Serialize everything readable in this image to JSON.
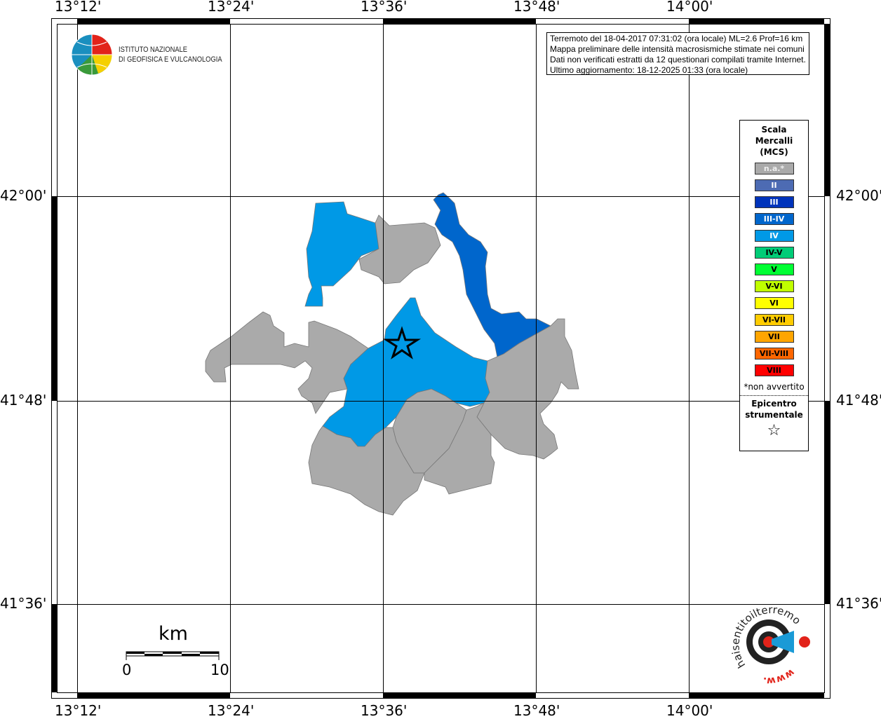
{
  "map": {
    "lon_ticks": [
      "13°12'",
      "13°24'",
      "13°36'",
      "13°48'",
      "14°00'"
    ],
    "lat_ticks": [
      "42°00'",
      "41°48'",
      "41°36'"
    ],
    "colors": {
      "na": "#aaaaaa",
      "IV": "#0099e6",
      "III-IV": "#0066cc"
    }
  },
  "logo": {
    "line1": "ISTITUTO NAZIONALE",
    "line2": "DI GEOFISICA E VULCANOLOGIA"
  },
  "info": {
    "line1": "Terremoto del 18-04-2017 07:31:02 (ora locale) ML=2.6 Prof=16 km",
    "line2": "Mappa preliminare delle intensità macrosismiche stimate nei comuni",
    "line3": "Dati non verificati estratti da 12 questionari compilati tramite Internet.",
    "line4": "Ultimo aggiornamento: 18-12-2025 01:33 (ora locale)"
  },
  "legend": {
    "title1": "Scala",
    "title2": "Mercalli",
    "title3": "(MCS)",
    "items": [
      {
        "label": "n.a.*",
        "color": "#aaaaaa",
        "text": "#eeeeee"
      },
      {
        "label": "II",
        "color": "#4d6bb3",
        "text": "#ffffff"
      },
      {
        "label": "III",
        "color": "#0033bb",
        "text": "#ffffff"
      },
      {
        "label": "III-IV",
        "color": "#0066cc",
        "text": "#ffffff"
      },
      {
        "label": "IV",
        "color": "#0099e6",
        "text": "#ffffff"
      },
      {
        "label": "IV-V",
        "color": "#00cc77",
        "text": "#000000"
      },
      {
        "label": "V",
        "color": "#00ff33",
        "text": "#000000"
      },
      {
        "label": "V-VI",
        "color": "#c0ff00",
        "text": "#000000"
      },
      {
        "label": "VI",
        "color": "#ffff00",
        "text": "#000000"
      },
      {
        "label": "VI-VII",
        "color": "#ffcc00",
        "text": "#000000"
      },
      {
        "label": "VII",
        "color": "#ffa500",
        "text": "#000000"
      },
      {
        "label": "VII-VIII",
        "color": "#ff6600",
        "text": "#000000"
      },
      {
        "label": "VIII",
        "color": "#ff0000",
        "text": "#000000"
      }
    ],
    "note": "*non avvertito",
    "epi1": "Epicentro",
    "epi2": "strumentale",
    "epi_icon": "star-outline-icon"
  },
  "scale": {
    "unit": "km",
    "min": "0",
    "max": "10"
  },
  "brand": {
    "text": "haisentitoilterremoto.it",
    "www": "www."
  }
}
